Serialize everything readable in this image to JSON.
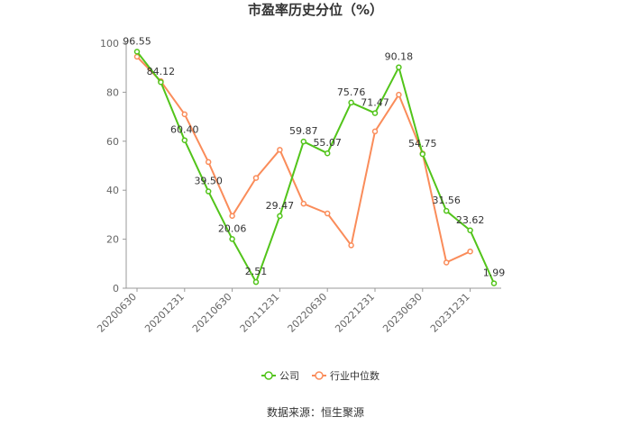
{
  "chart_data": {
    "type": "line",
    "title": "市盈率历史分位（%）",
    "xlabel": "",
    "ylabel": "",
    "ylim": [
      0,
      100
    ],
    "yticks": [
      0,
      20,
      40,
      60,
      80,
      100
    ],
    "x": [
      "20200630",
      "20200930",
      "20201231",
      "20210331",
      "20210630",
      "20210930",
      "20211231",
      "20220331",
      "20220630",
      "20220930",
      "20221231",
      "20230331",
      "20230630",
      "20230930",
      "20231231",
      "20240331"
    ],
    "xtick_labels": [
      "20200630",
      "20201231",
      "20210630",
      "20211231",
      "20220630",
      "20221231",
      "20230630",
      "20231231"
    ],
    "legend_position": "bottom-center",
    "grid": false,
    "series": [
      {
        "name": "公司",
        "color": "#52c41a",
        "values": [
          96.55,
          84.12,
          60.4,
          39.5,
          20.06,
          2.51,
          29.47,
          59.87,
          55.07,
          75.76,
          71.47,
          90.18,
          54.75,
          31.56,
          23.62,
          1.99
        ],
        "labels": [
          "96.55",
          "84.12",
          "60.40",
          "39.50",
          "20.06",
          "2.51",
          "29.47",
          "59.87",
          "55.07",
          "75.76",
          "71.47",
          "90.18",
          "54.75",
          "31.56",
          "23.62",
          "1.99"
        ]
      },
      {
        "name": "行业中位数",
        "color": "#fa8c5a",
        "values": [
          94.5,
          84.5,
          71.0,
          51.5,
          29.5,
          45.0,
          56.5,
          34.5,
          30.5,
          17.5,
          64.0,
          79.0,
          55.0,
          10.5,
          15.0,
          null
        ]
      }
    ]
  },
  "footer": {
    "source": "数据来源：恒生聚源"
  }
}
